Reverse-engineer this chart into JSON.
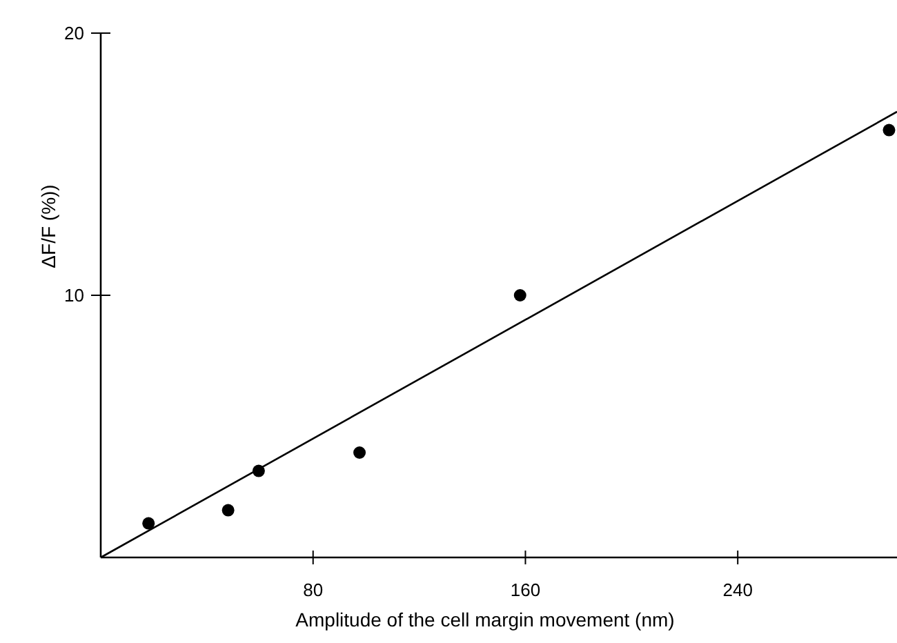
{
  "chart_data": {
    "type": "scatter",
    "xlabel": "Amplitude of the cell margin movement (nm)",
    "ylabel": "ΔF/F (%))",
    "xlim": [
      0,
      300
    ],
    "ylim": [
      0,
      20
    ],
    "xticks": [
      80,
      160,
      240
    ],
    "yticks": [
      10,
      20
    ],
    "grid": false,
    "series": [
      {
        "color": "#000000",
        "marker": "circle",
        "x": [
          18,
          48,
          59.5,
          97.5,
          158,
          297
        ],
        "values": [
          1.3,
          1.8,
          3.3,
          4.0,
          10.0,
          16.3
        ]
      },
      {
        "type": "line",
        "color": "#000000",
        "marker": "none",
        "x": [
          0,
          300
        ],
        "values": [
          0,
          17
        ]
      }
    ]
  }
}
